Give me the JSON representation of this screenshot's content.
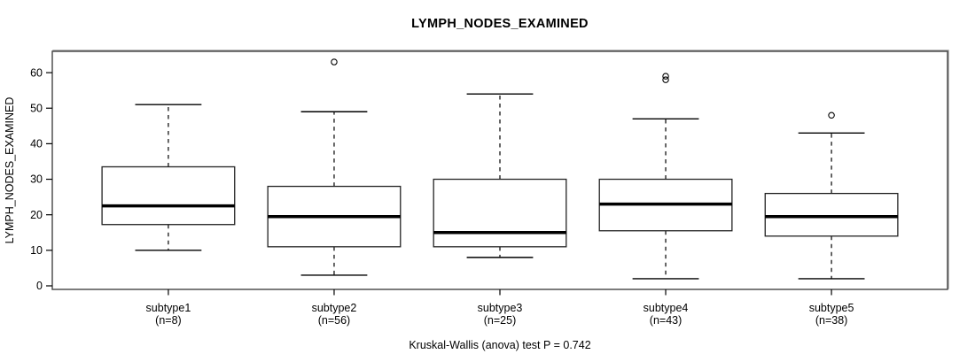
{
  "chart_data": {
    "type": "boxplot",
    "title": "LYMPH_NODES_EXAMINED",
    "ylabel": "LYMPH_NODES_EXAMINED",
    "xlabel": "",
    "footnote": "Kruskal-Wallis (anova) test P = 0.742",
    "yticks": [
      0,
      10,
      20,
      30,
      40,
      50,
      60
    ],
    "ylim": [
      -1,
      66
    ],
    "xlim": [
      0.3,
      5.7
    ],
    "grid": false,
    "legend_position": "none",
    "box_width_units": 0.8,
    "box_fill": "#ffffff",
    "line_color": "#000000",
    "frame_color": "#444444",
    "groups": [
      {
        "label": "subtype1",
        "n": 8,
        "n_label": "(n=8)",
        "whisker_low": 10,
        "q1": 17.25,
        "median": 22.5,
        "q3": 33.5,
        "whisker_high": 51,
        "outliers": []
      },
      {
        "label": "subtype2",
        "n": 56,
        "n_label": "(n=56)",
        "whisker_low": 3,
        "q1": 11,
        "median": 19.5,
        "q3": 28,
        "whisker_high": 49,
        "outliers": [
          63
        ]
      },
      {
        "label": "subtype3",
        "n": 25,
        "n_label": "(n=25)",
        "whisker_low": 8,
        "q1": 11,
        "median": 15,
        "q3": 30,
        "whisker_high": 54,
        "outliers": []
      },
      {
        "label": "subtype4",
        "n": 43,
        "n_label": "(n=43)",
        "whisker_low": 2,
        "q1": 15.5,
        "median": 23,
        "q3": 30,
        "whisker_high": 47,
        "outliers": [
          58,
          59
        ]
      },
      {
        "label": "subtype5",
        "n": 38,
        "n_label": "(n=38)",
        "whisker_low": 2,
        "q1": 14,
        "median": 19.5,
        "q3": 26,
        "whisker_high": 43,
        "outliers": [
          48
        ]
      }
    ]
  }
}
